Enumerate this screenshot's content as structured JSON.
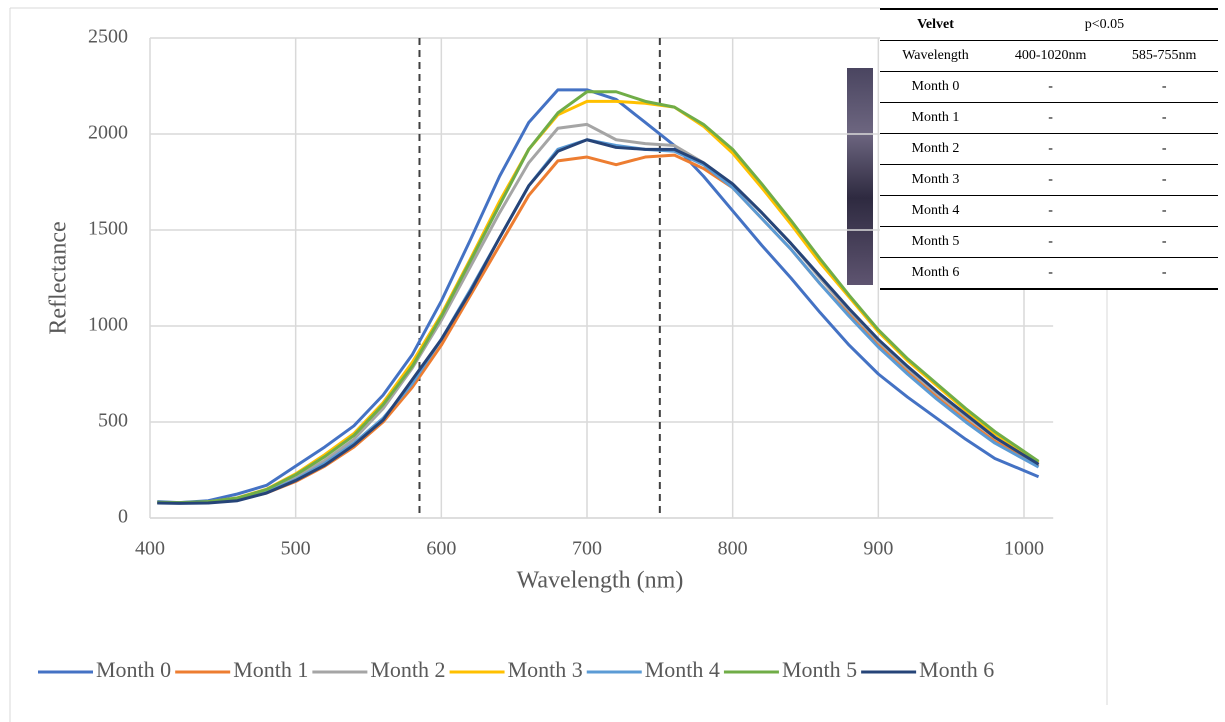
{
  "chart_data": {
    "type": "line",
    "x_label": "Wavelength (nm)",
    "y_label": "Reflectance",
    "x": [
      405,
      420,
      440,
      460,
      480,
      500,
      520,
      540,
      560,
      580,
      600,
      620,
      640,
      660,
      680,
      700,
      720,
      740,
      760,
      780,
      800,
      820,
      840,
      860,
      880,
      900,
      920,
      940,
      960,
      980,
      1010
    ],
    "series": [
      {
        "name": "Month 0",
        "color": "#4472c4",
        "values": [
          85,
          80,
          90,
          125,
          170,
          270,
          370,
          480,
          640,
          850,
          1130,
          1450,
          1780,
          2060,
          2230,
          2230,
          2180,
          2060,
          1940,
          1780,
          1600,
          1420,
          1250,
          1070,
          900,
          750,
          630,
          520,
          410,
          310,
          215
        ]
      },
      {
        "name": "Month 1",
        "color": "#ed7d31",
        "values": [
          80,
          78,
          80,
          95,
          130,
          190,
          270,
          370,
          500,
          680,
          900,
          1160,
          1420,
          1680,
          1860,
          1880,
          1840,
          1880,
          1890,
          1820,
          1720,
          1560,
          1400,
          1220,
          1060,
          900,
          760,
          630,
          510,
          400,
          270
        ]
      },
      {
        "name": "Month 2",
        "color": "#a5a5a5",
        "values": [
          80,
          78,
          82,
          100,
          140,
          210,
          300,
          410,
          570,
          780,
          1030,
          1310,
          1590,
          1850,
          2030,
          2050,
          1970,
          1950,
          1940,
          1850,
          1740,
          1590,
          1430,
          1250,
          1080,
          920,
          780,
          650,
          530,
          420,
          280
        ]
      },
      {
        "name": "Month 3",
        "color": "#ffc000",
        "values": [
          80,
          78,
          84,
          105,
          150,
          230,
          330,
          440,
          600,
          810,
          1060,
          1350,
          1650,
          1920,
          2100,
          2170,
          2170,
          2160,
          2140,
          2040,
          1900,
          1720,
          1530,
          1330,
          1150,
          970,
          820,
          690,
          560,
          440,
          290
        ]
      },
      {
        "name": "Month 4",
        "color": "#5b9bd5",
        "values": [
          80,
          78,
          80,
          96,
          135,
          200,
          285,
          390,
          520,
          700,
          930,
          1190,
          1460,
          1730,
          1920,
          1970,
          1940,
          1920,
          1910,
          1840,
          1720,
          1560,
          1400,
          1220,
          1050,
          890,
          750,
          620,
          500,
          390,
          265
        ]
      },
      {
        "name": "Month 5",
        "color": "#70ad47",
        "values": [
          82,
          80,
          85,
          104,
          148,
          225,
          320,
          430,
          590,
          790,
          1050,
          1340,
          1630,
          1920,
          2110,
          2220,
          2220,
          2170,
          2140,
          2050,
          1920,
          1740,
          1550,
          1350,
          1160,
          980,
          830,
          700,
          570,
          450,
          295
        ]
      },
      {
        "name": "Month 6",
        "color": "#264478",
        "values": [
          78,
          76,
          78,
          90,
          130,
          195,
          275,
          380,
          510,
          720,
          930,
          1180,
          1460,
          1730,
          1910,
          1970,
          1930,
          1920,
          1920,
          1850,
          1740,
          1590,
          1430,
          1260,
          1090,
          930,
          790,
          660,
          540,
          420,
          280
        ]
      }
    ],
    "xlim": [
      400,
      1020
    ],
    "xticks": [
      400,
      500,
      600,
      700,
      800,
      900,
      1000
    ],
    "ylim": [
      0,
      2500
    ],
    "yticks": [
      0,
      500,
      1000,
      1500,
      2000,
      2500
    ],
    "vlines": [
      585,
      750
    ],
    "grid": true,
    "legend": "bottom"
  },
  "table": {
    "title": "Velvet",
    "subtitle": "p<0.05",
    "header": [
      "Wavelength",
      "400-1020nm",
      "585-755nm"
    ],
    "rows": [
      [
        "Month 0",
        "-",
        "-"
      ],
      [
        "Month 1",
        "-",
        "-"
      ],
      [
        "Month 2",
        "-",
        "-"
      ],
      [
        "Month 3",
        "-",
        "-"
      ],
      [
        "Month 4",
        "-",
        "-"
      ],
      [
        "Month 5",
        "-",
        "-"
      ],
      [
        "Month 6",
        "-",
        "-"
      ]
    ]
  }
}
